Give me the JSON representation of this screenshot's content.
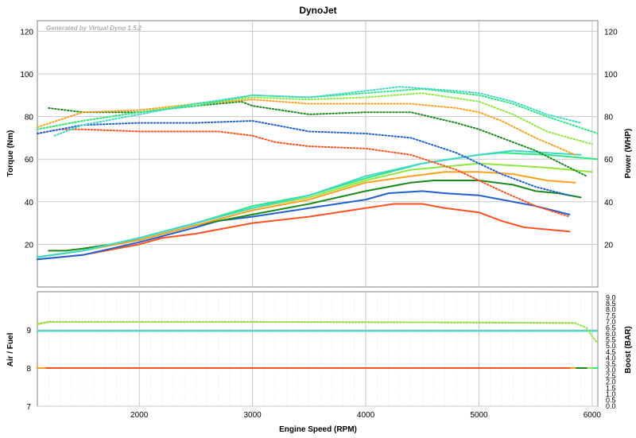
{
  "chart_data": [
    {
      "type": "line",
      "title": "DynoJet",
      "watermark": "Generated by Virtual Dyno 1.5.2",
      "ylabel": "Torque (Nm)",
      "y2label": "Power (WHP)",
      "xlim": [
        1100,
        6050
      ],
      "ylim": [
        0,
        125
      ],
      "y2lim": [
        0,
        125
      ],
      "yticks": [
        20,
        40,
        60,
        80,
        100,
        120
      ],
      "y2ticks": [
        20,
        40,
        60,
        80,
        100,
        120
      ],
      "grid": true,
      "series": [
        {
          "kind": "torque",
          "color": "#ff5020",
          "dotted": false,
          "x": [
            1100,
            1500,
            2000,
            2200,
            2500,
            2700,
            3000,
            3500,
            4000,
            4250,
            4500,
            4700,
            5000,
            5200,
            5400,
            5600,
            5800
          ],
          "y": [
            13,
            15,
            20,
            23,
            25,
            27,
            30,
            33,
            37,
            39,
            39,
            37,
            35,
            31,
            28,
            27,
            26
          ]
        },
        {
          "kind": "torque",
          "color": "#2060d0",
          "dotted": false,
          "x": [
            1100,
            1500,
            2000,
            2500,
            2700,
            3000,
            3500,
            4000,
            4200,
            4500,
            4700,
            5000,
            5200,
            5500,
            5800
          ],
          "y": [
            13,
            15,
            21,
            28,
            31,
            33,
            37,
            41,
            44,
            45,
            44,
            43,
            41,
            38,
            34
          ]
        },
        {
          "kind": "torque",
          "color": "#1a8a1a",
          "dotted": false,
          "x": [
            1200,
            1350,
            1500,
            2000,
            2500,
            3000,
            3500,
            4000,
            4400,
            4600,
            5000,
            5300,
            5500,
            5700,
            5900
          ],
          "y": [
            17,
            17,
            18,
            22,
            29,
            34,
            39,
            45,
            49,
            50,
            50,
            48,
            45,
            44,
            42
          ]
        },
        {
          "kind": "torque",
          "color": "#ffa020",
          "dotted": false,
          "x": [
            1100,
            1500,
            2000,
            2500,
            3000,
            3500,
            4000,
            4400,
            4700,
            5000,
            5300,
            5600,
            5850
          ],
          "y": [
            14,
            17,
            22,
            29,
            36,
            41,
            49,
            52,
            54,
            54,
            53,
            50,
            49
          ]
        },
        {
          "kind": "torque",
          "color": "#90e840",
          "dotted": false,
          "x": [
            1100,
            1500,
            2000,
            2500,
            3000,
            3500,
            4000,
            4400,
            4800,
            5000,
            5300,
            5600,
            6000
          ],
          "y": [
            14,
            17,
            23,
            30,
            37,
            42,
            50,
            55,
            57,
            58,
            57,
            56,
            54
          ]
        },
        {
          "kind": "torque",
          "color": "#30e880",
          "dotted": false,
          "x": [
            1100,
            1500,
            2000,
            2500,
            3000,
            3500,
            4000,
            4500,
            5000,
            5200,
            5600,
            6050
          ],
          "y": [
            14,
            17,
            23,
            30,
            38,
            43,
            51,
            58,
            62,
            63,
            62,
            60
          ]
        },
        {
          "kind": "torque",
          "color": "#40d8c8",
          "dotted": false,
          "x": [
            1100,
            1500,
            2000,
            2500,
            3000,
            3500,
            4000,
            4500,
            5000,
            5300,
            5600,
            5900
          ],
          "y": [
            14,
            17,
            23,
            30,
            37,
            43,
            52,
            58,
            62,
            64,
            63,
            62
          ]
        },
        {
          "kind": "power",
          "color": "#ff5020",
          "dotted": true,
          "x": [
            1100,
            1300,
            1500,
            2000,
            2300,
            2700,
            3000,
            3200,
            3500,
            4000,
            4400,
            4800,
            5000,
            5200,
            5500,
            5800
          ],
          "y": [
            72,
            74,
            74,
            73,
            73,
            73,
            71,
            68,
            66,
            65,
            62,
            55,
            50,
            45,
            38,
            33
          ]
        },
        {
          "kind": "power",
          "color": "#2060d0",
          "dotted": true,
          "x": [
            1100,
            1500,
            2000,
            2500,
            3000,
            3200,
            3500,
            4000,
            4400,
            4800,
            5000,
            5200,
            5500,
            5800
          ],
          "y": [
            72,
            76,
            77,
            77,
            78,
            76,
            73,
            72,
            70,
            63,
            58,
            53,
            47,
            43
          ]
        },
        {
          "kind": "power",
          "color": "#1a8a1a",
          "dotted": true,
          "x": [
            1200,
            1500,
            2000,
            2500,
            2900,
            3000,
            3500,
            4000,
            4400,
            4800,
            5000,
            5200,
            5500,
            5950
          ],
          "y": [
            84,
            82,
            82,
            85,
            87,
            85,
            81,
            82,
            82,
            77,
            74,
            70,
            64,
            52
          ]
        },
        {
          "kind": "power",
          "color": "#ffa020",
          "dotted": true,
          "x": [
            1100,
            1500,
            2000,
            2500,
            3000,
            3500,
            4000,
            4400,
            4800,
            5000,
            5200,
            5500,
            5850
          ],
          "y": [
            75,
            82,
            83,
            86,
            88,
            86,
            86,
            86,
            84,
            82,
            78,
            70,
            62
          ]
        },
        {
          "kind": "power",
          "color": "#90e840",
          "dotted": true,
          "x": [
            1100,
            1500,
            2000,
            2500,
            3000,
            3500,
            4000,
            4500,
            5000,
            5300,
            5600,
            6000
          ],
          "y": [
            74,
            78,
            82,
            86,
            89,
            88,
            89,
            91,
            87,
            81,
            73,
            67
          ]
        },
        {
          "kind": "power",
          "color": "#30e880",
          "dotted": true,
          "x": [
            1100,
            1500,
            2000,
            2500,
            3000,
            3500,
            4000,
            4500,
            5000,
            5300,
            5600,
            6050
          ],
          "y": [
            74,
            78,
            82,
            85,
            90,
            89,
            91,
            93,
            90,
            86,
            80,
            72
          ]
        },
        {
          "kind": "power",
          "color": "#40d8c8",
          "dotted": true,
          "x": [
            1250,
            1500,
            2000,
            2500,
            3000,
            3500,
            4000,
            4300,
            4800,
            5000,
            5300,
            5600,
            5900
          ],
          "y": [
            71,
            76,
            81,
            86,
            90,
            89,
            92,
            94,
            92,
            91,
            87,
            81,
            77
          ]
        }
      ]
    },
    {
      "type": "line",
      "xlabel": "Engine Speed (RPM)",
      "ylabel": "Air / Fuel",
      "y2label": "Boost (BAR)",
      "xlim": [
        1100,
        6050
      ],
      "ylim": [
        7,
        10
      ],
      "y2lim": [
        0,
        9.5
      ],
      "yticks": [
        7,
        8,
        9
      ],
      "xticks": [
        2000,
        3000,
        4000,
        5000,
        6000
      ],
      "xtick_labels": [
        "2000",
        "3000",
        "4000",
        "5000",
        "6000"
      ],
      "y2ticks": [
        0.0,
        0.5,
        1.0,
        1.5,
        2.0,
        2.5,
        3.0,
        3.5,
        4.0,
        4.5,
        5.0,
        5.5,
        6.0,
        6.5,
        7.0,
        7.5,
        8.0,
        8.5,
        9.0
      ],
      "y2tick_labels": [
        "0.0",
        "0.5",
        "1.0",
        "1.5",
        "2.0",
        "2.5",
        "3.0",
        "3.5",
        "4.0",
        "4.5",
        "5.0",
        "5.5",
        "6.0",
        "6.5",
        "7.0",
        "7.5",
        "8.0",
        "8.5",
        "9.0"
      ],
      "grid": true,
      "series": [
        {
          "kind": "afr",
          "color": "#00b8b0",
          "dotted": false,
          "x": [
            1100,
            6050
          ],
          "y": [
            8.0,
            8.0
          ]
        },
        {
          "kind": "afr",
          "color": "#30e880",
          "dotted": false,
          "x": [
            1100,
            6050
          ],
          "y": [
            8.0,
            8.0
          ]
        },
        {
          "kind": "afr",
          "color": "#90e840",
          "dotted": false,
          "x": [
            1100,
            6000
          ],
          "y": [
            8.0,
            8.0
          ]
        },
        {
          "kind": "afr",
          "color": "#1a8a1a",
          "dotted": false,
          "x": [
            1100,
            5950
          ],
          "y": [
            8.0,
            8.0
          ]
        },
        {
          "kind": "afr",
          "color": "#2060d0",
          "dotted": false,
          "x": [
            1100,
            5800
          ],
          "y": [
            8.0,
            8.0
          ]
        },
        {
          "kind": "afr",
          "color": "#ffa020",
          "dotted": false,
          "x": [
            1100,
            5850
          ],
          "y": [
            8.0,
            8.0
          ]
        },
        {
          "kind": "afr",
          "color": "#ff5020",
          "dotted": false,
          "x": [
            1180,
            5800
          ],
          "y": [
            8.0,
            8.0
          ]
        },
        {
          "kind": "afr",
          "color": "#40d8c8",
          "dotted": false,
          "x": [
            1100,
            6050
          ],
          "y": [
            8.97,
            8.97
          ]
        },
        {
          "kind": "boost",
          "color": "#1a8a1a",
          "dotted": true,
          "x": [
            1100,
            1200,
            3000,
            5000,
            5850
          ],
          "y": [
            6.8,
            7.0,
            7.0,
            6.95,
            6.9
          ]
        },
        {
          "kind": "boost",
          "color": "#ffa020",
          "dotted": true,
          "x": [
            1100,
            1200,
            3000,
            5000,
            5850
          ],
          "y": [
            6.85,
            7.0,
            7.0,
            6.95,
            6.9
          ]
        },
        {
          "kind": "boost",
          "color": "#90e840",
          "dotted": true,
          "x": [
            1100,
            1200,
            3000,
            5000,
            5850,
            5950,
            6000,
            6050
          ],
          "y": [
            6.8,
            7.0,
            7.0,
            6.95,
            6.9,
            6.5,
            5.8,
            5.2
          ]
        }
      ]
    }
  ]
}
